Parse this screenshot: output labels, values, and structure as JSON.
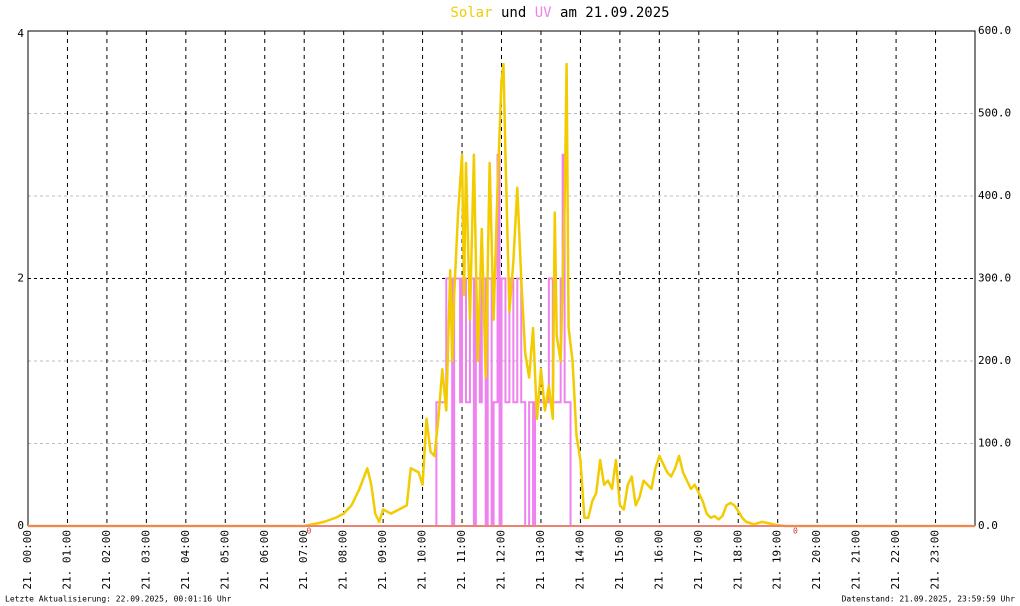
{
  "chart_data": {
    "type": "line",
    "title_parts": [
      "und",
      "am 21.09.2025"
    ],
    "xlim": [
      0,
      24
    ],
    "xticks": [
      {
        "value": 0,
        "label": "21. 00:00"
      },
      {
        "value": 1,
        "label": "21. 01:00"
      },
      {
        "value": 2,
        "label": "21. 02:00"
      },
      {
        "value": 3,
        "label": "21. 03:00"
      },
      {
        "value": 4,
        "label": "21. 04:00"
      },
      {
        "value": 5,
        "label": "21. 05:00"
      },
      {
        "value": 6,
        "label": "21. 06:00"
      },
      {
        "value": 7,
        "label": "21. 07:00"
      },
      {
        "value": 8,
        "label": "21. 08:00"
      },
      {
        "value": 9,
        "label": "21. 09:00"
      },
      {
        "value": 10,
        "label": "21. 10:00"
      },
      {
        "value": 11,
        "label": "21. 11:00"
      },
      {
        "value": 12,
        "label": "21. 12:00"
      },
      {
        "value": 13,
        "label": "21. 13:00"
      },
      {
        "value": 14,
        "label": "21. 14:00"
      },
      {
        "value": 15,
        "label": "21. 15:00"
      },
      {
        "value": 16,
        "label": "21. 16:00"
      },
      {
        "value": 17,
        "label": "21. 17:00"
      },
      {
        "value": 18,
        "label": "21. 18:00"
      },
      {
        "value": 19,
        "label": "21. 19:00"
      },
      {
        "value": 20,
        "label": "21. 20:00"
      },
      {
        "value": 21,
        "label": "21. 21:00"
      },
      {
        "value": 22,
        "label": "21. 22:00"
      },
      {
        "value": 23,
        "label": "21. 23:00"
      }
    ],
    "ylim": [
      0,
      4
    ],
    "yticks": [
      0,
      2,
      4
    ],
    "y2lim": [
      0,
      600
    ],
    "y2ticks": [
      {
        "value": 0,
        "label": "0.0"
      },
      {
        "value": 100,
        "label": "100.0"
      },
      {
        "value": 200,
        "label": "200.0"
      },
      {
        "value": 300,
        "label": "300.0"
      },
      {
        "value": 400,
        "label": "400.0"
      },
      {
        "value": 500,
        "label": "500.0"
      },
      {
        "value": 600,
        "label": "600.0"
      }
    ],
    "grid": true,
    "series": [
      {
        "name": "Solar",
        "color": "#f2cc00",
        "axis": "y2",
        "x": [
          0,
          7.0,
          7.2,
          7.5,
          7.8,
          8.0,
          8.2,
          8.4,
          8.6,
          8.7,
          8.8,
          8.9,
          9.0,
          9.2,
          9.4,
          9.6,
          9.7,
          9.9,
          10.0,
          10.1,
          10.2,
          10.3,
          10.4,
          10.5,
          10.6,
          10.7,
          10.75,
          10.8,
          10.9,
          11.0,
          11.05,
          11.1,
          11.2,
          11.3,
          11.4,
          11.5,
          11.6,
          11.7,
          11.8,
          11.9,
          12.0,
          12.05,
          12.1,
          12.2,
          12.3,
          12.4,
          12.5,
          12.6,
          12.7,
          12.8,
          12.9,
          13.0,
          13.1,
          13.2,
          13.3,
          13.35,
          13.4,
          13.5,
          13.6,
          13.65,
          13.7,
          13.8,
          13.9,
          14.0,
          14.1,
          14.2,
          14.3,
          14.4,
          14.5,
          14.6,
          14.7,
          14.8,
          14.9,
          15.0,
          15.1,
          15.2,
          15.3,
          15.4,
          15.5,
          15.6,
          15.7,
          15.8,
          15.9,
          16.0,
          16.1,
          16.2,
          16.3,
          16.4,
          16.5,
          16.6,
          16.7,
          16.8,
          16.9,
          17.0,
          17.1,
          17.2,
          17.3,
          17.4,
          17.5,
          17.6,
          17.7,
          17.8,
          17.9,
          18.0,
          18.1,
          18.2,
          18.4,
          18.6,
          18.8,
          19.0,
          19.2,
          24
        ],
        "values": [
          0,
          0,
          2,
          5,
          10,
          15,
          25,
          45,
          70,
          50,
          15,
          5,
          20,
          15,
          20,
          25,
          70,
          65,
          50,
          130,
          90,
          85,
          130,
          190,
          140,
          310,
          200,
          280,
          380,
          450,
          280,
          440,
          250,
          450,
          200,
          360,
          180,
          440,
          250,
          410,
          540,
          560,
          450,
          260,
          320,
          410,
          300,
          210,
          180,
          240,
          130,
          190,
          140,
          170,
          130,
          380,
          230,
          200,
          390,
          560,
          240,
          200,
          110,
          80,
          10,
          10,
          30,
          40,
          80,
          50,
          55,
          45,
          80,
          25,
          20,
          50,
          60,
          25,
          35,
          55,
          50,
          45,
          70,
          85,
          75,
          65,
          60,
          70,
          85,
          65,
          55,
          45,
          50,
          40,
          30,
          15,
          10,
          12,
          8,
          12,
          25,
          28,
          25,
          18,
          10,
          5,
          2,
          5,
          3,
          1,
          0,
          0
        ]
      },
      {
        "name": "UV",
        "color": "#ee82ee",
        "axis": "y",
        "step": "post",
        "x": [
          0,
          10.35,
          10.6,
          10.75,
          10.8,
          10.95,
          11.0,
          11.1,
          11.2,
          11.3,
          11.35,
          11.45,
          11.5,
          11.6,
          11.65,
          11.75,
          11.8,
          11.9,
          11.95,
          12.0,
          12.1,
          12.2,
          12.3,
          12.4,
          12.5,
          12.6,
          12.7,
          12.8,
          12.85,
          13.2,
          13.3,
          13.5,
          13.55,
          13.6,
          13.75,
          24
        ],
        "values": [
          0,
          1,
          2,
          0,
          2,
          1,
          2,
          1,
          2,
          0,
          2,
          1,
          2,
          0,
          2,
          0,
          1,
          3,
          0,
          2,
          1,
          2,
          1,
          2,
          1,
          0,
          1,
          0,
          1,
          2,
          1,
          2,
          3,
          1,
          0,
          0
        ]
      }
    ],
    "annotations": [
      {
        "x": 7.12,
        "text": "0"
      },
      {
        "x": 19.45,
        "text": "0"
      }
    ],
    "footer": {
      "left": "Letzte Aktualisierung: 22.09.2025, 00:01:16 Uhr",
      "right": "Datenstand: 21.09.2025, 23:59:59 Uhr"
    }
  }
}
